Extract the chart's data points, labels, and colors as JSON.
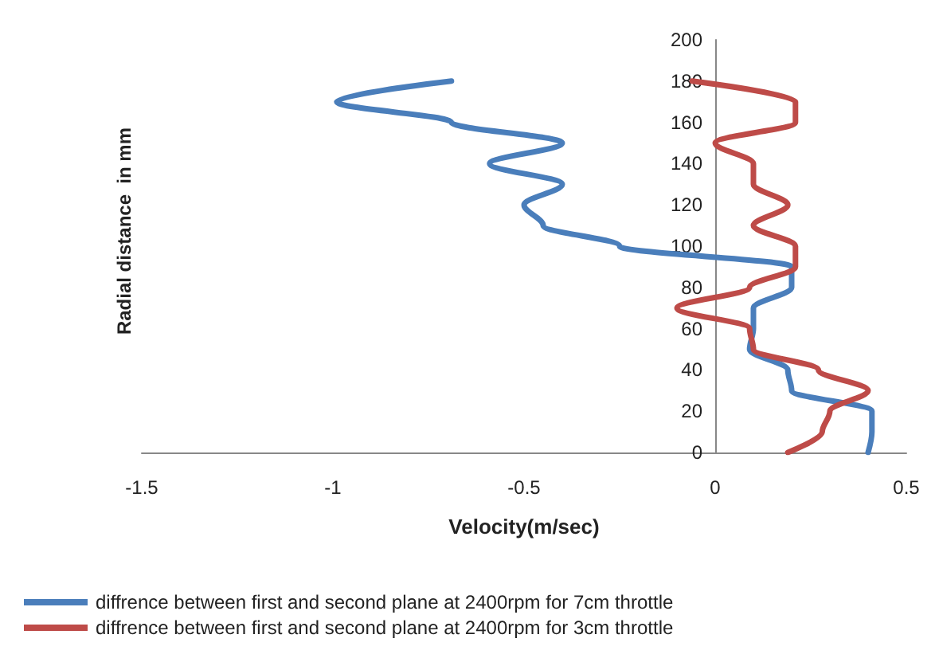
{
  "chart_data": {
    "type": "line",
    "xlabel": "Velocity(m/sec)",
    "ylabel": "Radial distance  in mm",
    "xlim": [
      -1.5,
      0.5
    ],
    "xticks": [
      -1.5,
      -1,
      -0.5,
      0,
      0.5
    ],
    "ylim": [
      0,
      200
    ],
    "yticks": [
      0,
      20,
      40,
      60,
      80,
      100,
      120,
      140,
      160,
      180,
      200
    ],
    "grid": false,
    "legend": "bottom",
    "marker": "none",
    "line_style": "solid",
    "series": [
      {
        "name": "diffrence between first and second plane at 2400rpm for 7cm throttle",
        "color": "#4a7ebb",
        "x": [
          0.4,
          0.41,
          0.41,
          0.2,
          0.19,
          0.09,
          0.1,
          0.1,
          0.2,
          0.2,
          -0.25,
          -0.45,
          -0.5,
          -0.4,
          -0.59,
          -0.4,
          -0.69,
          -0.99,
          -0.69
        ],
        "values": [
          0,
          10,
          20,
          30,
          40,
          50,
          60,
          70,
          80,
          90,
          100,
          110,
          120,
          130,
          140,
          150,
          160,
          170,
          180
        ]
      },
      {
        "name": "diffrence between first and second plane at 2400rpm for 3cm throttle",
        "color": "#be4b48",
        "x": [
          0.19,
          0.28,
          0.3,
          0.4,
          0.27,
          0.1,
          0.09,
          -0.1,
          0.09,
          0.21,
          0.21,
          0.1,
          0.19,
          0.1,
          0.1,
          0,
          0.21,
          0.21,
          -0.06
        ],
        "values": [
          0,
          10,
          20,
          30,
          40,
          50,
          60,
          70,
          80,
          90,
          100,
          110,
          120,
          130,
          140,
          150,
          160,
          170,
          180
        ]
      }
    ]
  }
}
